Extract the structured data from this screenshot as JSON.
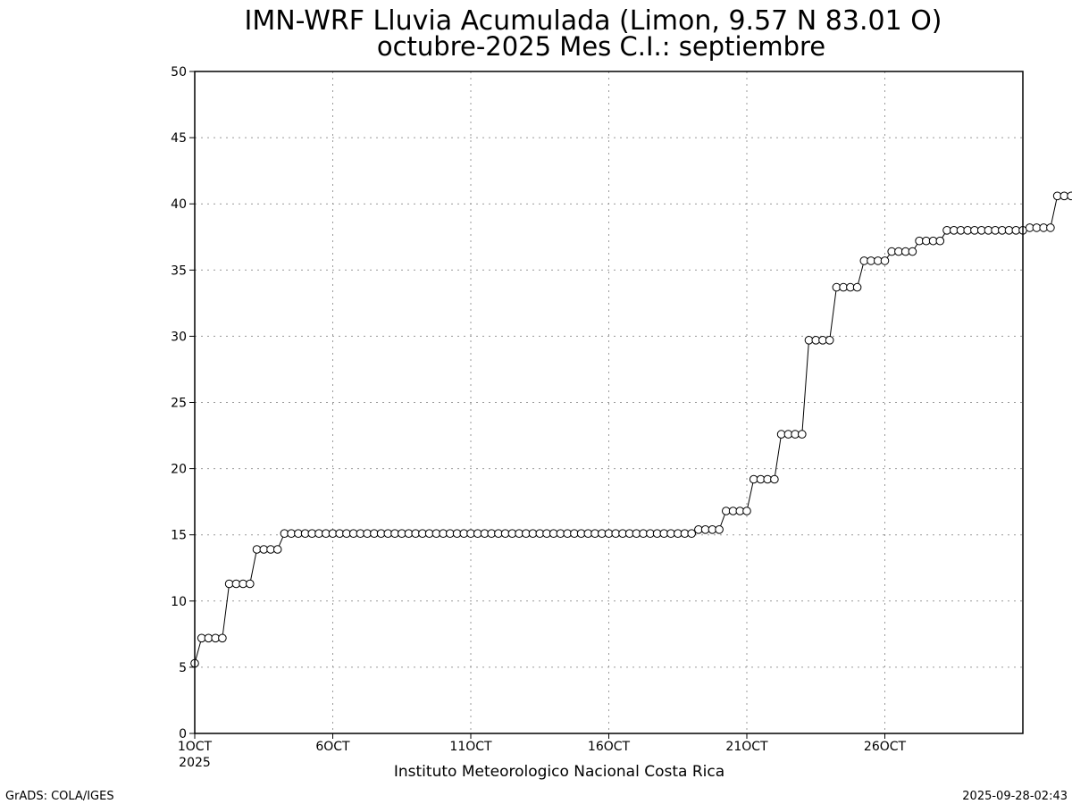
{
  "chart_data": {
    "type": "line",
    "title": "IMN-WRF  Lluvia Acumulada (Limon, 9.57  N 83.01  O)",
    "subtitle": "octubre-2025 Mes C.I.: septiembre",
    "xlabel": "Instituto Meteorologico Nacional Costa Rica",
    "ylabel": "",
    "xlim": [
      1,
      31
    ],
    "ylim": [
      0,
      50
    ],
    "yticks": [
      0,
      5,
      10,
      15,
      20,
      25,
      30,
      35,
      40,
      45,
      50
    ],
    "xticks": [
      {
        "x": 1,
        "label": "1OCT",
        "sublabel": "2025"
      },
      {
        "x": 6,
        "label": "6OCT",
        "sublabel": ""
      },
      {
        "x": 11,
        "label": "11OCT",
        "sublabel": ""
      },
      {
        "x": 16,
        "label": "16OCT",
        "sublabel": ""
      },
      {
        "x": 21,
        "label": "21OCT",
        "sublabel": ""
      },
      {
        "x": 26,
        "label": "26OCT",
        "sublabel": ""
      }
    ],
    "grid": true,
    "marker": "open-circle",
    "series_levels": [
      5.3,
      7.2,
      7.2,
      7.2,
      7.2,
      11.3,
      11.3,
      11.3,
      11.3,
      13.9,
      13.9,
      13.9,
      13.9,
      15.1,
      15.1,
      15.1,
      15.1,
      15.1,
      15.1,
      15.1,
      15.1,
      15.1,
      15.1,
      15.1,
      15.1,
      15.1,
      15.1,
      15.1,
      15.1,
      15.1,
      15.1,
      15.1,
      15.1,
      15.1,
      15.1,
      15.1,
      15.1,
      15.1,
      15.1,
      15.1,
      15.1,
      15.1,
      15.1,
      15.1,
      15.1,
      15.1,
      15.1,
      15.1,
      15.1,
      15.1,
      15.1,
      15.1,
      15.1,
      15.1,
      15.1,
      15.1,
      15.1,
      15.1,
      15.1,
      15.1,
      15.1,
      15.1,
      15.1,
      15.1,
      15.1,
      15.1,
      15.1,
      15.1,
      15.1,
      15.1,
      15.1,
      15.1,
      15.1,
      15.4,
      15.4,
      15.4,
      15.4,
      16.8,
      16.8,
      16.8,
      16.8,
      19.2,
      19.2,
      19.2,
      19.2,
      22.6,
      22.6,
      22.6,
      22.6,
      29.7,
      29.7,
      29.7,
      29.7,
      33.7,
      33.7,
      33.7,
      33.7,
      35.7,
      35.7,
      35.7,
      35.7,
      36.4,
      36.4,
      36.4,
      36.4,
      37.2,
      37.2,
      37.2,
      37.2,
      38.0,
      38.0,
      38.0,
      38.0,
      38.0,
      38.0,
      38.0,
      38.0,
      38.0,
      38.0,
      38.0,
      38.0,
      38.2,
      38.2,
      38.2,
      38.2,
      40.6,
      40.6,
      40.6,
      40.6
    ],
    "x_step_days": 0.25
  },
  "footer": {
    "left": "GrADS: COLA/IGES",
    "right": "2025-09-28-02:43"
  }
}
